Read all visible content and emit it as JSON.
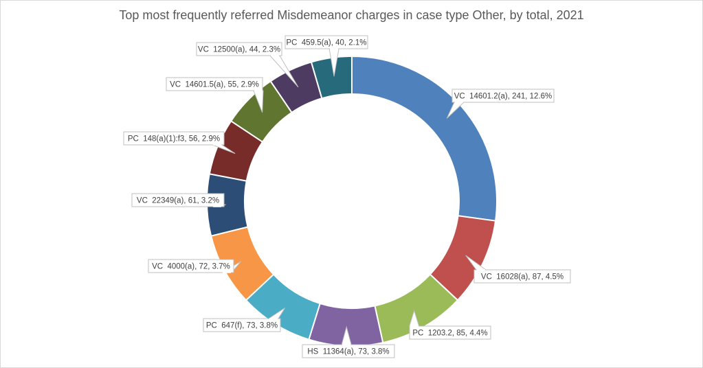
{
  "chart_data": {
    "type": "pie",
    "variant": "doughnut",
    "title": "Top most frequently referred Misdemeanor charges in case type Other, by total, 2021",
    "slices": [
      {
        "label": "VC  14601.2(a), 241, 12.6%",
        "name": "VC  14601.2(a)",
        "value": 241,
        "percent": 12.6,
        "color": "#4f81bd"
      },
      {
        "label": "VC  16028(a), 87, 4.5%",
        "name": "VC  16028(a)",
        "value": 87,
        "percent": 4.5,
        "color": "#c0504d"
      },
      {
        "label": "PC  1203.2, 85, 4.4%",
        "name": "PC  1203.2",
        "value": 85,
        "percent": 4.4,
        "color": "#9bbb59"
      },
      {
        "label": "HS  11364(a), 73, 3.8%",
        "name": "HS  11364(a)",
        "value": 73,
        "percent": 3.8,
        "color": "#8064a2"
      },
      {
        "label": "PC  647(f), 73, 3.8%",
        "name": "PC  647(f)",
        "value": 73,
        "percent": 3.8,
        "color": "#4bacc6"
      },
      {
        "label": "VC  4000(a), 72, 3.7%",
        "name": "VC  4000(a)",
        "value": 72,
        "percent": 3.7,
        "color": "#f79646"
      },
      {
        "label": "VC  22349(a), 61, 3.2%",
        "name": "VC  22349(a)",
        "value": 61,
        "percent": 3.2,
        "color": "#2c4d75"
      },
      {
        "label": "PC  148(a)(1):f3, 56, 2.9%",
        "name": "PC  148(a)(1):f3",
        "value": 56,
        "percent": 2.9,
        "color": "#772c2a"
      },
      {
        "label": "VC  14601.5(a), 55, 2.9%",
        "name": "VC  14601.5(a)",
        "value": 55,
        "percent": 2.9,
        "color": "#5f7530"
      },
      {
        "label": "VC  12500(a), 44, 2.3%",
        "name": "VC  12500(a)",
        "value": 44,
        "percent": 2.3,
        "color": "#4d3b62"
      },
      {
        "label": "PC  459.5(a), 40, 2.1%",
        "name": "PC  459.5(a)",
        "value": 40,
        "percent": 2.1,
        "color": "#276a7c"
      }
    ],
    "legend": "none"
  }
}
